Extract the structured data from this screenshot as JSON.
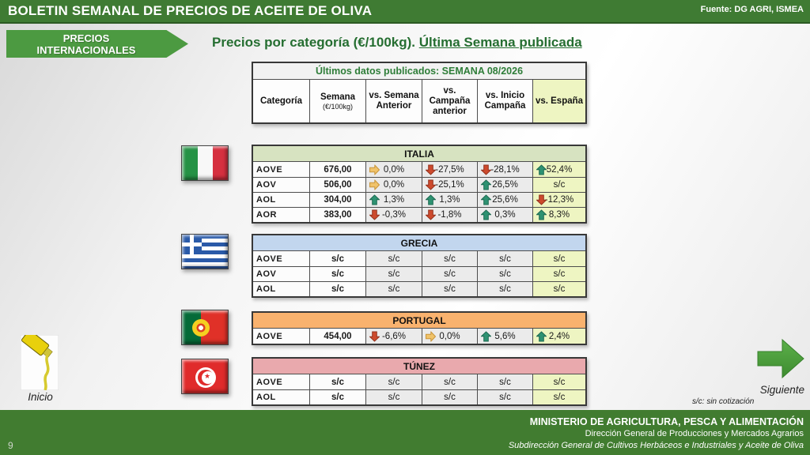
{
  "header": {
    "title": "BOLETIN SEMANAL DE PRECIOS DE ACEITE DE OLIVA",
    "source": "Fuente: DG AGRI, ISMEA"
  },
  "badge": {
    "line1": "PRECIOS",
    "line2": "INTERNACIONALES"
  },
  "page_title": {
    "normal": "Precios por categoría (€/100kg). ",
    "underlined": "Última Semana publicada"
  },
  "table_header": {
    "published": "Últimos datos publicados: SEMANA 08/2026",
    "col_category": "Categoría",
    "col_week": "Semana",
    "col_week_unit": "(€/100kg)",
    "col_prev_week": "vs. Semana\nAnterior",
    "col_prev_campaign": "vs.\nCampaña\nanterior",
    "col_start_campaign": "vs. Inicio\nCampaña",
    "col_spain": "vs. España"
  },
  "colors": {
    "up": "#2e9272",
    "up_border": "#1d6b52",
    "down": "#cd4a2d",
    "down_border": "#93321d",
    "flat": "#f0c36a",
    "flat_border": "#c9953a",
    "accent_green": "#3f7b33",
    "spain_col_bg": "#eef5c2"
  },
  "countries": [
    {
      "name": "ITALIA",
      "flag": "italy",
      "header_color": "#d7e3c1",
      "rows": [
        {
          "category": "AOVE",
          "week": "676,00",
          "changes": [
            {
              "dir": "flat",
              "value": "0,0%"
            },
            {
              "dir": "down",
              "value": "-27,5%"
            },
            {
              "dir": "down",
              "value": "-28,1%"
            },
            {
              "dir": "up",
              "value": "52,4%"
            }
          ]
        },
        {
          "category": "AOV",
          "week": "506,00",
          "changes": [
            {
              "dir": "flat",
              "value": "0,0%"
            },
            {
              "dir": "down",
              "value": "-25,1%"
            },
            {
              "dir": "up",
              "value": "26,5%"
            },
            {
              "dir": null,
              "value": "s/c"
            }
          ]
        },
        {
          "category": "AOL",
          "week": "304,00",
          "changes": [
            {
              "dir": "up",
              "value": "1,3%"
            },
            {
              "dir": "up",
              "value": "1,3%"
            },
            {
              "dir": "up",
              "value": "25,6%"
            },
            {
              "dir": "down",
              "value": "-12,3%"
            }
          ]
        },
        {
          "category": "AOR",
          "week": "383,00",
          "changes": [
            {
              "dir": "down",
              "value": "-0,3%"
            },
            {
              "dir": "down",
              "value": "-1,8%"
            },
            {
              "dir": "up",
              "value": "0,3%"
            },
            {
              "dir": "up",
              "value": "8,3%"
            }
          ]
        }
      ]
    },
    {
      "name": "GRECIA",
      "flag": "greece",
      "header_color": "#c2d6ee",
      "rows": [
        {
          "category": "AOVE",
          "week": "s/c",
          "changes": [
            {
              "dir": null,
              "value": "s/c"
            },
            {
              "dir": null,
              "value": "s/c"
            },
            {
              "dir": null,
              "value": "s/c"
            },
            {
              "dir": null,
              "value": "s/c"
            }
          ]
        },
        {
          "category": "AOV",
          "week": "s/c",
          "changes": [
            {
              "dir": null,
              "value": "s/c"
            },
            {
              "dir": null,
              "value": "s/c"
            },
            {
              "dir": null,
              "value": "s/c"
            },
            {
              "dir": null,
              "value": "s/c"
            }
          ]
        },
        {
          "category": "AOL",
          "week": "s/c",
          "changes": [
            {
              "dir": null,
              "value": "s/c"
            },
            {
              "dir": null,
              "value": "s/c"
            },
            {
              "dir": null,
              "value": "s/c"
            },
            {
              "dir": null,
              "value": "s/c"
            }
          ]
        }
      ]
    },
    {
      "name": "PORTUGAL",
      "flag": "portugal",
      "header_color": "#f9b26e",
      "rows": [
        {
          "category": "AOVE",
          "week": "454,00",
          "changes": [
            {
              "dir": "down",
              "value": "-6,6%"
            },
            {
              "dir": "flat",
              "value": "0,0%"
            },
            {
              "dir": "up",
              "value": "5,6%"
            },
            {
              "dir": "up",
              "value": "2,4%"
            }
          ]
        }
      ]
    },
    {
      "name": "TÚNEZ",
      "flag": "tunisia",
      "header_color": "#e9a9ad",
      "rows": [
        {
          "category": "AOVE",
          "week": "s/c",
          "changes": [
            {
              "dir": null,
              "value": "s/c"
            },
            {
              "dir": null,
              "value": "s/c"
            },
            {
              "dir": null,
              "value": "s/c"
            },
            {
              "dir": null,
              "value": "s/c"
            }
          ]
        },
        {
          "category": "AOL",
          "week": "s/c",
          "changes": [
            {
              "dir": null,
              "value": "s/c"
            },
            {
              "dir": null,
              "value": "s/c"
            },
            {
              "dir": null,
              "value": "s/c"
            },
            {
              "dir": null,
              "value": "s/c"
            }
          ]
        }
      ]
    }
  ],
  "footnote": "s/c: sin cotización",
  "nav": {
    "inicio": "Inicio",
    "siguiente": "Siguiente"
  },
  "footer": {
    "line1": "MINISTERIO DE AGRICULTURA, PESCA Y ALIMENTACIÓN",
    "line2": "Dirección General de Producciones y Mercados Agrarios",
    "line3": "Subdirección General de Cultivos Herbáceos e Industriales y Aceite de Oliva",
    "page": "9"
  }
}
